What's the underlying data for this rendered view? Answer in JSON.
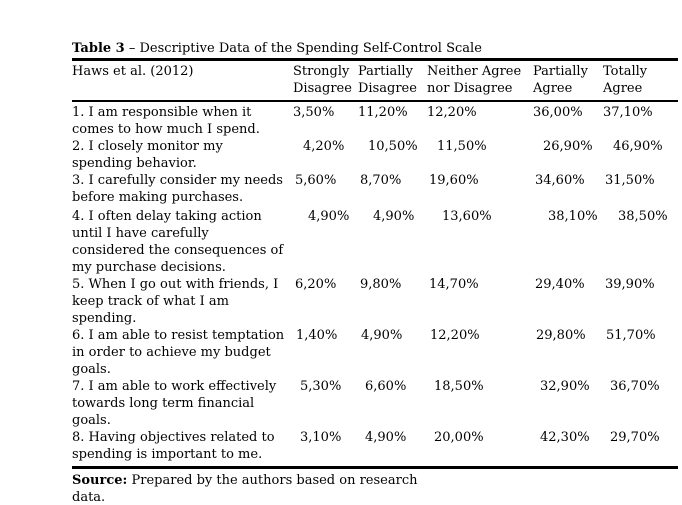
{
  "caption": {
    "bold": "Table 3",
    "rest": "– Descriptive Data of the Spending Self-Control Scale"
  },
  "table": {
    "first_header": "Haws et al. (2012)",
    "headers": [
      "Strongly Disagree",
      "Partially Disagree",
      "Neither Agree nor Disagree",
      "Partially Agree",
      "Totally Agree"
    ],
    "rows": [
      {
        "question": "1. I am responsible when it comes to how much I spend.",
        "lines": [
          "1. I am responsible when it",
          "comes to how much I spend."
        ],
        "values": [
          "3,50%",
          "11,20%",
          "12,20%",
          "36,00%",
          "37,10%"
        ]
      },
      {
        "question": "2. I closely monitor my spending behavior.",
        "lines": [
          "2. I closely monitor my",
          "spending behavior."
        ],
        "values": [
          "4,20%",
          "10,50%",
          "11,50%",
          "26,90%",
          "46,90%"
        ]
      },
      {
        "question": "3. I carefully consider my needs before making purchases.",
        "lines": [
          "3. I carefully consider my needs",
          "before making purchases."
        ],
        "values": [
          "5,60%",
          "8,70%",
          "19,60%",
          "34,60%",
          "31,50%"
        ]
      },
      {
        "question": "4. I often delay taking action until I have carefully considered the consequences of my purchase decisions.",
        "lines": [
          "4. I often delay taking action",
          "until I have carefully",
          "considered the consequences of",
          "my purchase decisions."
        ],
        "values": [
          "4,90%",
          "4,90%",
          "13,60%",
          "38,10%",
          "38,50%"
        ]
      },
      {
        "question": "5. When I go out with friends, I keep track of what I am spending.",
        "lines": [
          "5. When I go out with friends, I",
          "keep track of what I am",
          "spending."
        ],
        "values": [
          "6,20%",
          "9,80%",
          "14,70%",
          "29,40%",
          "39,90%"
        ]
      },
      {
        "question": "6. I am able to resist temptation in order to achieve my budget goals.",
        "lines": [
          "6. I am able to resist temptation",
          "in order to achieve my budget",
          "goals."
        ],
        "values": [
          "1,40%",
          "4,90%",
          "12,20%",
          "29,80%",
          "51,70%"
        ]
      },
      {
        "question": "7. I am able to work effectively towards long term financial goals.",
        "lines": [
          "7. I am able to work effectively",
          "towards long term financial",
          "goals."
        ],
        "values": [
          "5,30%",
          "6,60%",
          "18,50%",
          "32,90%",
          "36,70%"
        ]
      },
      {
        "question": "8. Having objectives related to spending is important to me.",
        "lines": [
          "8. Having objectives related to",
          "spending is important to me."
        ],
        "values": [
          "3,10%",
          "4,90%",
          "20,00%",
          "42,30%",
          "29,70%"
        ]
      }
    ]
  },
  "source": {
    "label": "Source:",
    "line1": "Prepared by the authors based on research",
    "line2": "data."
  }
}
